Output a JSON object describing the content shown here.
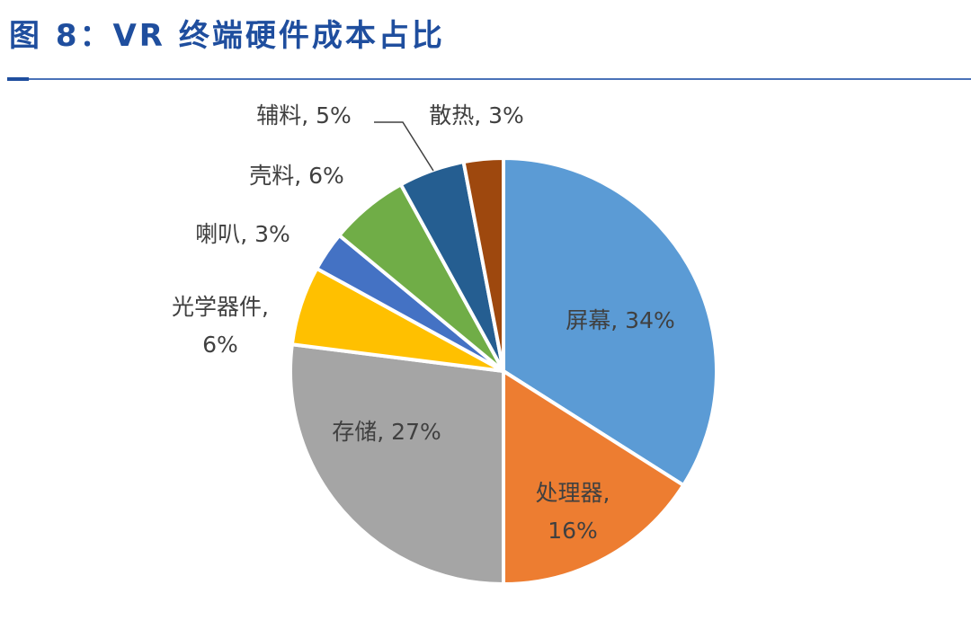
{
  "title": "图 8：VR 终端硬件成本占比",
  "chart_data": {
    "type": "pie",
    "title": "图 8：VR 终端硬件成本占比",
    "start": "12 o'clock",
    "direction": "clockwise",
    "slices": [
      {
        "name": "屏幕",
        "value": 34,
        "label": [
          "屏幕, 34%"
        ],
        "color": "#5B9BD5"
      },
      {
        "name": "处理器",
        "value": 16,
        "label": [
          "处理器,",
          "16%"
        ],
        "color": "#ED7D31"
      },
      {
        "name": "存储",
        "value": 27,
        "label": [
          "存储, 27%"
        ],
        "color": "#A5A5A5"
      },
      {
        "name": "光学器件",
        "value": 6,
        "label": [
          "光学器件,",
          "6%"
        ],
        "color": "#FFC000"
      },
      {
        "name": "喇叭",
        "value": 3,
        "label": [
          "喇叭, 3%"
        ],
        "color": "#4472C4"
      },
      {
        "name": "壳料",
        "value": 6,
        "label": [
          "壳料, 6%"
        ],
        "color": "#70AD47"
      },
      {
        "name": "辅料",
        "value": 5,
        "label": [
          "辅料, 5%"
        ],
        "color": "#255E91"
      },
      {
        "name": "散热",
        "value": 3,
        "label": [
          "散热, 3%"
        ],
        "color": "#9E480E"
      }
    ]
  }
}
